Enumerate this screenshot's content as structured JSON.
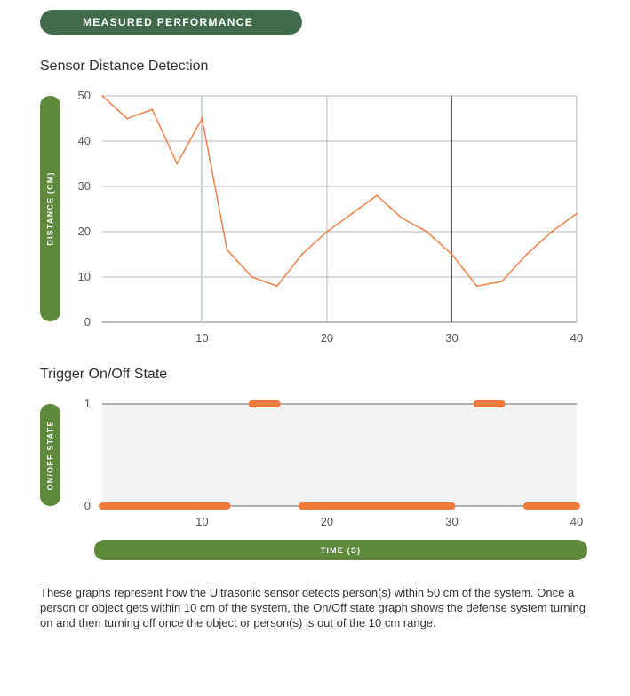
{
  "header": {
    "label": "MEASURED PERFORMANCE"
  },
  "charts": {
    "distance": {
      "title": "Sensor Distance Detection",
      "ylabel": "DISTANCE (CM)"
    },
    "trigger": {
      "title": "Trigger On/Off State",
      "ylabel": "ON/OFF STATE"
    },
    "xlabel": "TIME (S)"
  },
  "description": "These graphs represent how the Ultrasonic sensor detects person(s) within 50 cm of the system. Once a person or object gets within 10 cm of the system, the On/Off state graph shows the defense system turning on and then turning off once the object or person(s) is out of the 10 cm range.",
  "colors": {
    "header": "#3f6b4c",
    "pill": "#5f8a3c",
    "series": "#f07a3c",
    "grid": "#b5b5b5",
    "dark_grid": "#555555",
    "highlight": "#c9d3cf",
    "panel": "#f2f2f2"
  },
  "chart_data": [
    {
      "type": "line",
      "title": "Sensor Distance Detection",
      "xlabel": "TIME (S)",
      "ylabel": "DISTANCE (CM)",
      "xlim": [
        2,
        40
      ],
      "ylim": [
        0,
        50
      ],
      "x_ticks": [
        10,
        20,
        30,
        40
      ],
      "y_ticks": [
        0,
        10,
        20,
        30,
        40,
        50
      ],
      "grid": true,
      "highlight_x": 10,
      "emphasized_gridline_x": 30,
      "series": [
        {
          "x": [
            2,
            4,
            6,
            8,
            10,
            12,
            14,
            16,
            18,
            20,
            22,
            24,
            26,
            28,
            30,
            32,
            34,
            36,
            38,
            40
          ],
          "values": [
            50,
            45,
            47,
            35,
            45,
            16,
            10,
            8,
            15,
            20,
            24,
            28,
            23,
            20,
            15,
            8,
            9,
            15,
            20,
            24
          ]
        }
      ]
    },
    {
      "type": "line",
      "title": "Trigger On/Off State",
      "xlabel": "TIME (S)",
      "ylabel": "ON/OFF STATE",
      "xlim": [
        2,
        40
      ],
      "ylim": [
        0,
        1
      ],
      "x_ticks": [
        10,
        20,
        30,
        40
      ],
      "y_ticks": [
        0,
        1
      ],
      "segments": [
        {
          "x_start": 2,
          "x_end": 12,
          "state": 0
        },
        {
          "x_start": 14,
          "x_end": 16,
          "state": 1
        },
        {
          "x_start": 18,
          "x_end": 30,
          "state": 0
        },
        {
          "x_start": 32,
          "x_end": 34,
          "state": 1
        },
        {
          "x_start": 36,
          "x_end": 40,
          "state": 0
        }
      ]
    }
  ]
}
